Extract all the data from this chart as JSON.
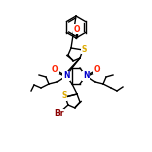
{
  "bg": "#ffffff",
  "bond_width": 1.0,
  "bond_color": "#000000",
  "colors": {
    "N": "#0000cc",
    "O": "#ff2200",
    "S": "#ddaa00",
    "Br": "#8B0000",
    "C": "#000000"
  },
  "figsize": [
    1.52,
    1.52
  ],
  "dpi": 100
}
